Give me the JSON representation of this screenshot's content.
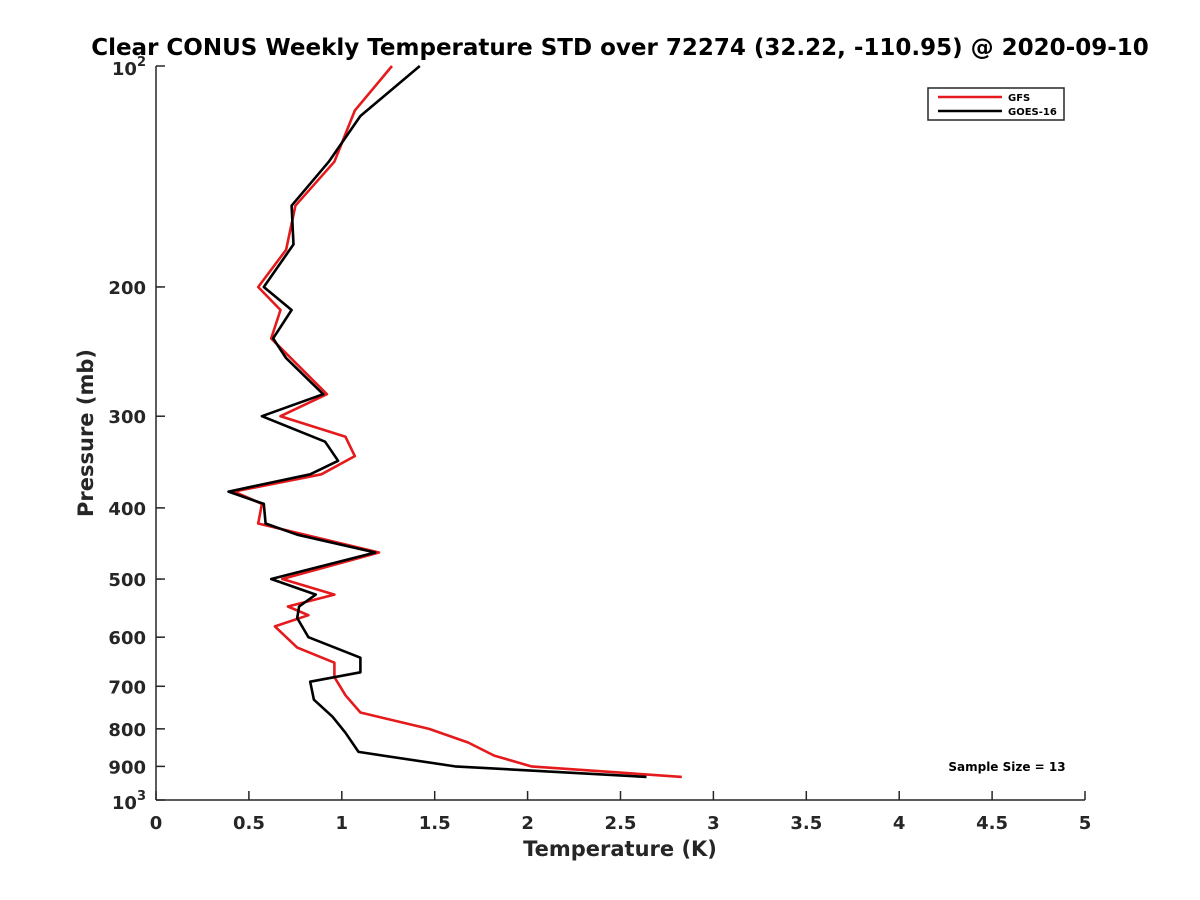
{
  "chart_data": {
    "type": "line",
    "title": "Clear CONUS Weekly Temperature STD over 72274 (32.22, -110.95) @ 2020-09-10",
    "xlabel": "Temperature (K)",
    "ylabel": "Pressure (mb)",
    "xlim": [
      0,
      5
    ],
    "ylim": [
      100,
      1000
    ],
    "yscale": "log",
    "y_reversed": true,
    "x_ticks": [
      "0",
      "0.5",
      "1",
      "1.5",
      "2",
      "2.5",
      "3",
      "3.5",
      "4",
      "4.5",
      "5"
    ],
    "y_ticks": [
      {
        "value": 200,
        "label": "200"
      },
      {
        "value": 300,
        "label": "300"
      },
      {
        "value": 400,
        "label": "400"
      },
      {
        "value": 500,
        "label": "500"
      },
      {
        "value": 600,
        "label": "600"
      },
      {
        "value": 700,
        "label": "700"
      },
      {
        "value": 800,
        "label": "800"
      },
      {
        "value": 900,
        "label": "900"
      }
    ],
    "y_end_labels": [
      {
        "value": 100,
        "base": "10",
        "exp": "2"
      },
      {
        "value": 1000,
        "base": "10",
        "exp": "3"
      }
    ],
    "grid": false,
    "legend_position": "top-right",
    "annotation": "Sample Size = 13",
    "series": [
      {
        "name": "GFS",
        "color": "#e41a1c",
        "points": [
          [
            1.27,
            100
          ],
          [
            1.07,
            115
          ],
          [
            0.96,
            135
          ],
          [
            0.75,
            155
          ],
          [
            0.7,
            178
          ],
          [
            0.55,
            200
          ],
          [
            0.67,
            215
          ],
          [
            0.62,
            235
          ],
          [
            0.92,
            280
          ],
          [
            0.67,
            300
          ],
          [
            1.02,
            320
          ],
          [
            1.07,
            340
          ],
          [
            0.89,
            360
          ],
          [
            0.42,
            380
          ],
          [
            0.57,
            395
          ],
          [
            0.55,
            420
          ],
          [
            1.2,
            460
          ],
          [
            0.68,
            500
          ],
          [
            0.96,
            525
          ],
          [
            0.71,
            545
          ],
          [
            0.82,
            560
          ],
          [
            0.64,
            580
          ],
          [
            0.76,
            620
          ],
          [
            0.96,
            650
          ],
          [
            0.96,
            680
          ],
          [
            1.02,
            720
          ],
          [
            1.1,
            760
          ],
          [
            1.47,
            800
          ],
          [
            1.68,
            835
          ],
          [
            1.82,
            870
          ],
          [
            2.02,
            900
          ],
          [
            2.83,
            930
          ]
        ]
      },
      {
        "name": "GOES-16",
        "color": "#000000",
        "points": [
          [
            1.42,
            100
          ],
          [
            1.1,
            117
          ],
          [
            0.93,
            135
          ],
          [
            0.73,
            155
          ],
          [
            0.74,
            175
          ],
          [
            0.58,
            200
          ],
          [
            0.73,
            215
          ],
          [
            0.63,
            235
          ],
          [
            0.7,
            250
          ],
          [
            0.9,
            280
          ],
          [
            0.57,
            300
          ],
          [
            0.91,
            325
          ],
          [
            0.98,
            345
          ],
          [
            0.83,
            360
          ],
          [
            0.39,
            380
          ],
          [
            0.58,
            395
          ],
          [
            0.59,
            420
          ],
          [
            0.76,
            435
          ],
          [
            1.18,
            460
          ],
          [
            0.62,
            500
          ],
          [
            0.86,
            525
          ],
          [
            0.77,
            545
          ],
          [
            0.76,
            565
          ],
          [
            0.82,
            600
          ],
          [
            1.1,
            640
          ],
          [
            1.1,
            670
          ],
          [
            0.83,
            690
          ],
          [
            0.85,
            730
          ],
          [
            0.95,
            770
          ],
          [
            1.02,
            810
          ],
          [
            1.09,
            860
          ],
          [
            1.61,
            900
          ],
          [
            2.64,
            930
          ]
        ]
      }
    ]
  }
}
